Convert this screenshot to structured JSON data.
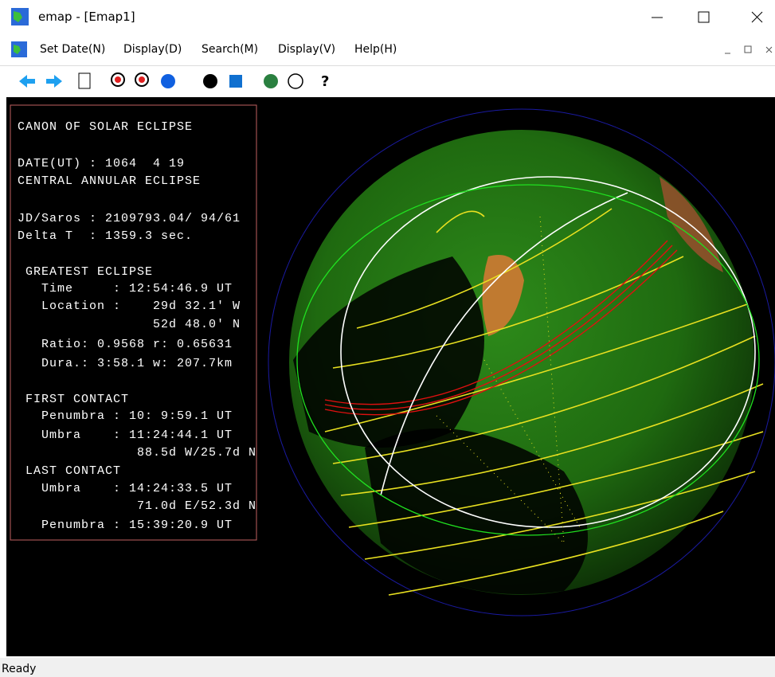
{
  "window": {
    "title": "emap - [Emap1]"
  },
  "menu": {
    "items": [
      "Set Date(N)",
      "Display(D)",
      "Search(M)",
      "Display(V)",
      "Help(H)"
    ]
  },
  "panel": {
    "lines": [
      "CANON OF SOLAR ECLIPSE",
      "DATE(UT) : 1064  4 19",
      "CENTRAL ANNULAR ECLIPSE",
      "JD/Saros : 2109793.04/ 94/61",
      "Delta T  : 1359.3 sec.",
      " GREATEST ECLIPSE",
      "   Time     : 12:54:46.9 UT",
      "   Location :    29d 32.1' W",
      "                 52d 48.0' N",
      "   Ratio: 0.9568 r: 0.65631",
      "   Dura.: 3:58.1 w: 207.7km",
      " FIRST CONTACT",
      "   Penumbra : 10: 9:59.1 UT",
      "   Umbra    : 11:24:44.1 UT",
      "               88.5d W/25.7d N",
      " LAST CONTACT",
      "   Umbra    : 14:24:33.5 UT",
      "               71.0d E/52.3d N",
      "   Penumbra : 15:39:20.9 UT"
    ]
  },
  "status": {
    "text": "Ready"
  }
}
